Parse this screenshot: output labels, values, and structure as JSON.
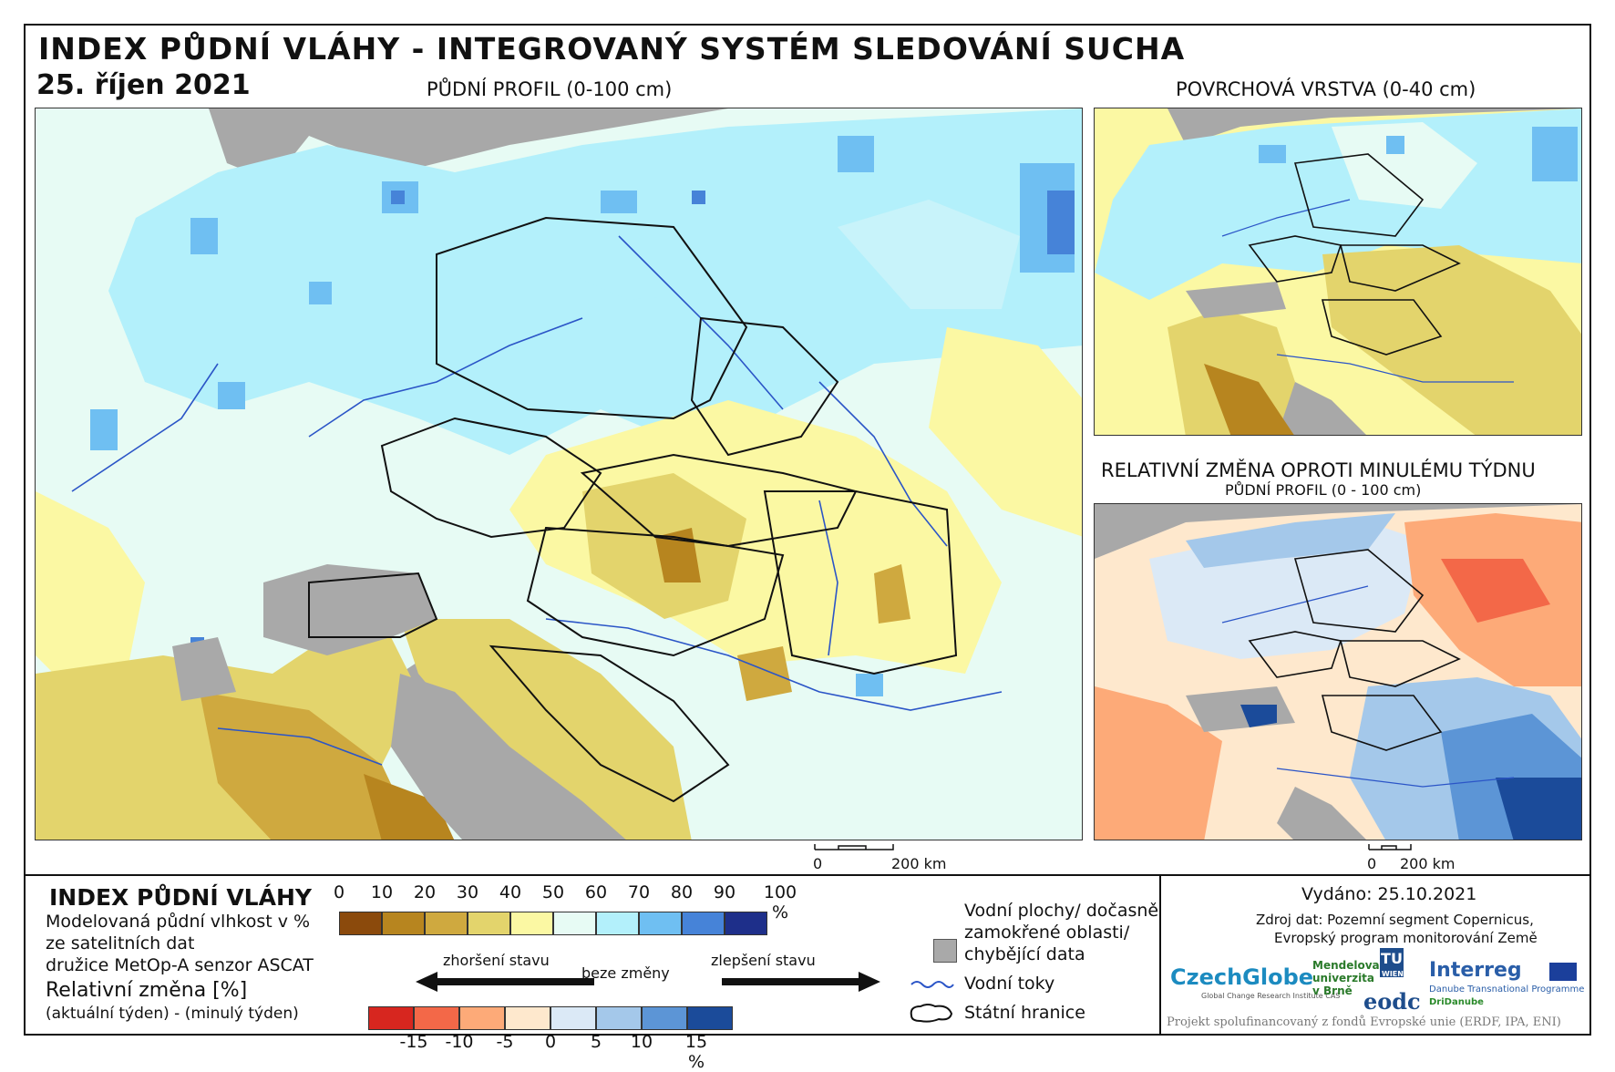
{
  "header": {
    "title": "INDEX PŮDNÍ VLÁHY - INTEGROVANÝ SYSTÉM SLEDOVÁNÍ SUCHA",
    "date": "25. říjen 2021"
  },
  "maps": {
    "main": {
      "subtitle": "PŮDNÍ PROFIL (0-100 cm)",
      "scale_zero": "0",
      "scale_label": "200 km"
    },
    "surface": {
      "subtitle": "POVRCHOVÁ VRSTVA (0-40 cm)"
    },
    "relative": {
      "title": "RELATIVNÍ ZMĚNA OPROTI MINULÉMU TÝDNU",
      "subtitle": "PŮDNÍ PROFIL (0 - 100 cm)",
      "scale_zero": "0",
      "scale_label": "200 km"
    }
  },
  "legend": {
    "heading": "INDEX PŮDNÍ VLÁHY",
    "desc_lines": [
      "Modelovaná půdní vlhkost v %",
      "ze satelitních dat",
      "družice MetOp-A senzor ASCAT"
    ],
    "rel_heading": "Relativní změna [%]",
    "rel_sub": "(aktuální týden) - (minulý týden)",
    "index_ticks": [
      "0",
      "10",
      "20",
      "30",
      "40",
      "50",
      "60",
      "70",
      "80",
      "90",
      "100 %"
    ],
    "index_colors": [
      "#8b4a0c",
      "#b7851f",
      "#cfa93f",
      "#e3d46c",
      "#fbf8a3",
      "#e7fbf4",
      "#b3f0fb",
      "#6fbff2",
      "#4683d8",
      "#1e2f8a"
    ],
    "arrow_worse": "zhoršení stavu",
    "arrow_none": "beze změny",
    "arrow_better": "zlepšení stavu",
    "change_ticks": [
      "-15",
      "-10",
      "-5",
      "0",
      "5",
      "10",
      "15 %"
    ],
    "change_colors": [
      "#d7261f",
      "#f36848",
      "#fdaa78",
      "#fee8cd",
      "#dbe9f6",
      "#a4c8ea",
      "#5c95d6",
      "#1b4b9a"
    ],
    "key_water_bodies": "Vodní plochy/ dočasně zamokřené oblasti/ chybějící data",
    "key_water_lines": [
      "Vodní plochy/ dočasně",
      "zamokřené oblasti/",
      "chybějící data"
    ],
    "key_rivers": "Vodní toky",
    "key_borders": "Státní hranice",
    "gray_color": "#a9a9a9",
    "river_color": "#2b55c7"
  },
  "footer": {
    "issued": "Vydáno: 25.10.2021",
    "source_lines": [
      "Zdroj dat: Pozemní segment Copernicus,",
      "Evropský program monitorování Země"
    ],
    "logos": {
      "czechglobe": "CzechGlobe",
      "czechglobe_sub": "Global Change Research Institute CAS",
      "mendel": [
        "Mendelova",
        "univerzita",
        "v Brně"
      ],
      "tu": "TU",
      "tu_sub": "WIEN",
      "eodc": "eodc",
      "interreg": "Interreg",
      "interreg_sub": "Danube Transnational Programme",
      "dridanube": "DriDanube"
    },
    "funding": "Projekt spolufinancovaný z fondů Evropské unie (ERDF, IPA, ENI)"
  }
}
